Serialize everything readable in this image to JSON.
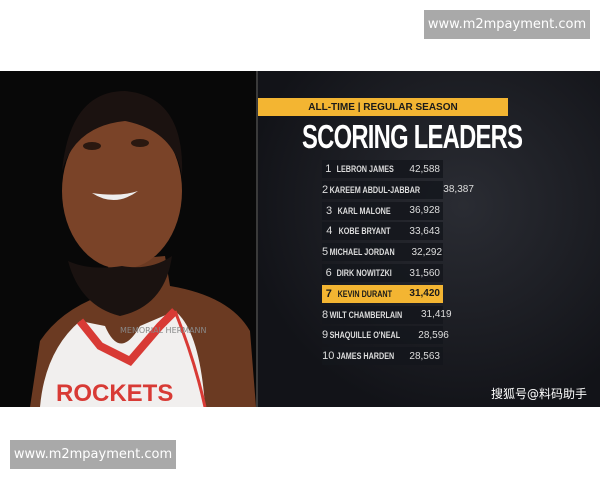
{
  "watermarks": {
    "top": "www.m2mpayment.com",
    "bottom": "www.m2mpayment.com"
  },
  "photo": {
    "jersey_sponsor": "MEMORIAL HERMANN",
    "jersey_text": "ROCKETS"
  },
  "panel": {
    "header": "ALL-TIME | REGULAR SEASON",
    "title": "SCORING LEADERS",
    "highlight_color": "#f3b532",
    "rows": [
      {
        "rank": "1",
        "name": "LEBRON JAMES",
        "points": "42,588"
      },
      {
        "rank": "2",
        "name": "KAREEM ABDUL-JABBAR",
        "points": "38,387"
      },
      {
        "rank": "3",
        "name": "KARL MALONE",
        "points": "36,928"
      },
      {
        "rank": "4",
        "name": "KOBE BRYANT",
        "points": "33,643"
      },
      {
        "rank": "5",
        "name": "MICHAEL JORDAN",
        "points": "32,292"
      },
      {
        "rank": "6",
        "name": "DIRK NOWITZKI",
        "points": "31,560"
      },
      {
        "rank": "7",
        "name": "KEVIN DURANT",
        "points": "31,420",
        "highlighted": true
      },
      {
        "rank": "8",
        "name": "WILT CHAMBERLAIN",
        "points": "31,419"
      },
      {
        "rank": "9",
        "name": "SHAQUILLE O'NEAL",
        "points": "28,596"
      },
      {
        "rank": "10",
        "name": "JAMES HARDEN",
        "points": "28,563"
      }
    ]
  },
  "credit": "搜狐号@料码助手"
}
